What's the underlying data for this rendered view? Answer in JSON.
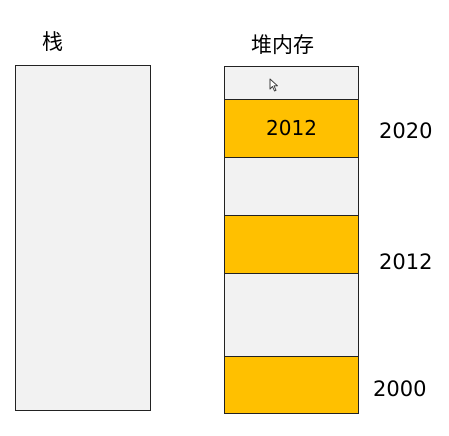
{
  "stack": {
    "title": "栈"
  },
  "heap": {
    "title": "堆内存",
    "cells": [
      {
        "text": "",
        "filled": false
      },
      {
        "text": "2012",
        "filled": true
      },
      {
        "text": "",
        "filled": false
      },
      {
        "text": "",
        "filled": true
      },
      {
        "text": "",
        "filled": false
      },
      {
        "text": "",
        "filled": true
      }
    ]
  },
  "addresses": {
    "a2020": "2020",
    "a2012": "2012",
    "a2000": "2000"
  },
  "colors": {
    "filled": "#ffc000",
    "empty": "#f2f2f2",
    "border": "#222222"
  }
}
